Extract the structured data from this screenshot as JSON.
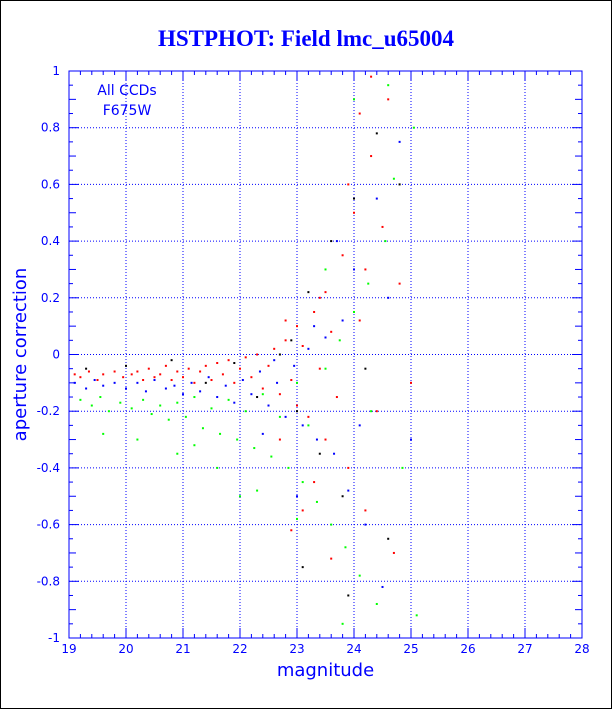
{
  "title": "HSTPHOT: Field lmc_u65004",
  "chart_data": {
    "type": "scatter",
    "title": "HSTPHOT: Field lmc_u65004",
    "xlabel": "magnitude",
    "ylabel": "aperture correction",
    "xlim": [
      19,
      28
    ],
    "ylim": [
      -1,
      1
    ],
    "x_ticks": [
      "19",
      "20",
      "21",
      "22",
      "23",
      "24",
      "25",
      "26",
      "27",
      "28"
    ],
    "y_ticks": [
      "-1",
      "-0.8",
      "-0.6",
      "-0.4",
      "-0.2",
      "0",
      "0.2",
      "0.4",
      "0.6",
      "0.8",
      "1"
    ],
    "grid": true,
    "annotations": [
      "All CCDs",
      "F675W"
    ],
    "series_colors": {
      "red": "#ff0000",
      "blue": "#0000ff",
      "green": "#00ff00",
      "black": "#000000"
    },
    "series": [
      {
        "color": "red",
        "points": [
          [
            19.1,
            -0.07
          ],
          [
            19.2,
            -0.08
          ],
          [
            19.35,
            -0.06
          ],
          [
            19.5,
            -0.09
          ],
          [
            19.6,
            -0.07
          ],
          [
            19.8,
            -0.06
          ],
          [
            19.95,
            -0.08
          ],
          [
            20.1,
            -0.07
          ],
          [
            20.2,
            -0.06
          ],
          [
            20.3,
            -0.09
          ],
          [
            20.4,
            -0.05
          ],
          [
            20.5,
            -0.08
          ],
          [
            20.6,
            -0.07
          ],
          [
            20.7,
            -0.04
          ],
          [
            20.8,
            -0.09
          ],
          [
            20.9,
            -0.06
          ],
          [
            21.0,
            -0.08
          ],
          [
            21.1,
            -0.05
          ],
          [
            21.2,
            -0.1
          ],
          [
            21.3,
            -0.06
          ],
          [
            21.4,
            -0.04
          ],
          [
            21.5,
            -0.09
          ],
          [
            21.6,
            -0.03
          ],
          [
            21.7,
            -0.07
          ],
          [
            21.8,
            -0.02
          ],
          [
            21.9,
            -0.1
          ],
          [
            22.0,
            -0.05
          ],
          [
            22.1,
            -0.01
          ],
          [
            22.2,
            -0.08
          ],
          [
            22.3,
            0.0
          ],
          [
            22.4,
            -0.12
          ],
          [
            22.5,
            -0.04
          ],
          [
            22.6,
            0.02
          ],
          [
            22.7,
            -0.14
          ],
          [
            22.8,
            0.05
          ],
          [
            22.9,
            -0.09
          ],
          [
            23.0,
            0.1
          ],
          [
            23.0,
            -0.18
          ],
          [
            23.1,
            0.03
          ],
          [
            23.2,
            -0.22
          ],
          [
            23.3,
            0.15
          ],
          [
            23.4,
            -0.05
          ],
          [
            23.5,
            0.22
          ],
          [
            23.5,
            -0.3
          ],
          [
            23.6,
            0.08
          ],
          [
            23.7,
            -0.15
          ],
          [
            23.8,
            0.35
          ],
          [
            23.9,
            -0.4
          ],
          [
            24.0,
            0.5
          ],
          [
            24.1,
            0.12
          ],
          [
            24.2,
            -0.55
          ],
          [
            24.3,
            0.7
          ],
          [
            24.3,
            0.98
          ],
          [
            24.4,
            -0.2
          ],
          [
            24.5,
            0.45
          ],
          [
            24.6,
            0.9
          ],
          [
            24.7,
            -0.7
          ],
          [
            24.8,
            0.25
          ],
          [
            25.0,
            -0.1
          ],
          [
            23.3,
            -0.45
          ],
          [
            22.7,
            -0.3
          ],
          [
            23.1,
            -0.55
          ],
          [
            22.9,
            -0.62
          ],
          [
            23.6,
            -0.72
          ],
          [
            24.1,
            0.85
          ],
          [
            24.2,
            0.3
          ],
          [
            23.4,
            0.2
          ],
          [
            22.8,
            0.12
          ],
          [
            23.9,
            0.6
          ]
        ]
      },
      {
        "color": "blue",
        "points": [
          [
            19.1,
            -0.1
          ],
          [
            19.3,
            -0.12
          ],
          [
            19.45,
            -0.09
          ],
          [
            19.6,
            -0.11
          ],
          [
            19.8,
            -0.1
          ],
          [
            20.0,
            -0.12
          ],
          [
            20.2,
            -0.1
          ],
          [
            20.35,
            -0.13
          ],
          [
            20.5,
            -0.09
          ],
          [
            20.7,
            -0.12
          ],
          [
            20.85,
            -0.11
          ],
          [
            21.0,
            -0.14
          ],
          [
            21.15,
            -0.1
          ],
          [
            21.3,
            -0.13
          ],
          [
            21.45,
            -0.08
          ],
          [
            21.6,
            -0.15
          ],
          [
            21.75,
            -0.11
          ],
          [
            21.9,
            -0.17
          ],
          [
            22.05,
            -0.09
          ],
          [
            22.2,
            -0.14
          ],
          [
            22.35,
            -0.06
          ],
          [
            22.5,
            -0.18
          ],
          [
            22.65,
            -0.1
          ],
          [
            22.8,
            -0.22
          ],
          [
            22.95,
            -0.04
          ],
          [
            23.1,
            -0.25
          ],
          [
            23.2,
            0.02
          ],
          [
            23.35,
            -0.3
          ],
          [
            23.5,
            0.06
          ],
          [
            23.65,
            -0.35
          ],
          [
            23.8,
            0.12
          ],
          [
            23.9,
            -0.48
          ],
          [
            24.0,
            0.3
          ],
          [
            24.2,
            -0.6
          ],
          [
            24.4,
            0.55
          ],
          [
            24.6,
            0.2
          ],
          [
            24.8,
            0.75
          ],
          [
            25.0,
            -0.3
          ],
          [
            22.4,
            -0.28
          ],
          [
            23.0,
            -0.5
          ],
          [
            23.7,
            0.4
          ],
          [
            24.1,
            -0.25
          ],
          [
            23.3,
            0.1
          ],
          [
            22.6,
            -0.02
          ],
          [
            24.5,
            -0.82
          ]
        ]
      },
      {
        "color": "green",
        "points": [
          [
            19.2,
            -0.16
          ],
          [
            19.4,
            -0.18
          ],
          [
            19.55,
            -0.15
          ],
          [
            19.7,
            -0.2
          ],
          [
            19.9,
            -0.17
          ],
          [
            20.1,
            -0.19
          ],
          [
            20.3,
            -0.16
          ],
          [
            20.45,
            -0.21
          ],
          [
            20.6,
            -0.18
          ],
          [
            20.75,
            -0.23
          ],
          [
            20.9,
            -0.17
          ],
          [
            21.05,
            -0.22
          ],
          [
            21.2,
            -0.15
          ],
          [
            21.35,
            -0.26
          ],
          [
            21.5,
            -0.19
          ],
          [
            21.65,
            -0.28
          ],
          [
            21.8,
            -0.16
          ],
          [
            21.95,
            -0.3
          ],
          [
            22.1,
            -0.2
          ],
          [
            22.25,
            -0.33
          ],
          [
            22.4,
            -0.14
          ],
          [
            22.55,
            -0.36
          ],
          [
            22.7,
            -0.22
          ],
          [
            22.85,
            -0.4
          ],
          [
            23.0,
            -0.1
          ],
          [
            23.1,
            -0.45
          ],
          [
            23.2,
            -0.25
          ],
          [
            23.35,
            -0.52
          ],
          [
            23.5,
            -0.05
          ],
          [
            23.6,
            -0.6
          ],
          [
            23.75,
            0.05
          ],
          [
            23.85,
            -0.68
          ],
          [
            24.0,
            0.15
          ],
          [
            24.1,
            -0.78
          ],
          [
            24.25,
            0.25
          ],
          [
            24.4,
            -0.88
          ],
          [
            24.55,
            0.4
          ],
          [
            24.7,
            0.62
          ],
          [
            24.85,
            -0.4
          ],
          [
            25.05,
            0.8
          ],
          [
            25.1,
            -0.92
          ],
          [
            19.6,
            -0.28
          ],
          [
            20.2,
            -0.3
          ],
          [
            20.9,
            -0.35
          ],
          [
            21.6,
            -0.4
          ],
          [
            22.3,
            -0.48
          ],
          [
            23.0,
            -0.58
          ],
          [
            23.5,
            0.3
          ],
          [
            24.0,
            0.9
          ],
          [
            24.6,
            0.95
          ],
          [
            22.0,
            -0.5
          ],
          [
            23.8,
            -0.95
          ],
          [
            21.2,
            -0.32
          ],
          [
            24.3,
            -0.2
          ]
        ]
      },
      {
        "color": "black",
        "points": [
          [
            19.3,
            -0.05
          ],
          [
            20.0,
            -0.04
          ],
          [
            20.8,
            -0.02
          ],
          [
            21.4,
            -0.1
          ],
          [
            21.9,
            -0.03
          ],
          [
            22.3,
            -0.15
          ],
          [
            22.7,
            0.0
          ],
          [
            23.0,
            -0.2
          ],
          [
            23.2,
            0.22
          ],
          [
            23.4,
            -0.35
          ],
          [
            23.6,
            0.4
          ],
          [
            23.8,
            -0.5
          ],
          [
            24.0,
            0.55
          ],
          [
            24.2,
            -0.05
          ],
          [
            24.4,
            0.78
          ],
          [
            24.6,
            -0.65
          ],
          [
            24.8,
            0.6
          ],
          [
            23.1,
            -0.75
          ],
          [
            23.9,
            -0.85
          ],
          [
            22.9,
            0.05
          ]
        ]
      }
    ]
  }
}
